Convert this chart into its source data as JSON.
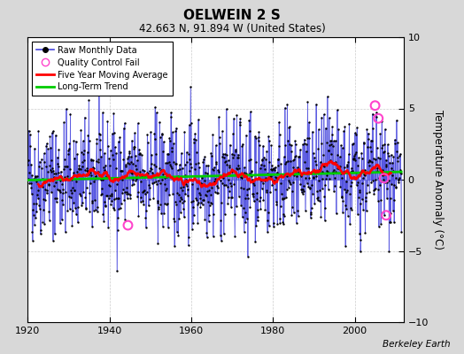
{
  "title": "OELWEIN 2 S",
  "subtitle": "42.663 N, 91.894 W (United States)",
  "ylabel": "Temperature Anomaly (°C)",
  "credit": "Berkeley Earth",
  "xlim": [
    1920,
    2012
  ],
  "ylim": [
    -10,
    10
  ],
  "xticks": [
    1920,
    1940,
    1960,
    1980,
    2000
  ],
  "yticks": [
    -10,
    -5,
    0,
    5,
    10
  ],
  "background_color": "#d8d8d8",
  "plot_bg_color": "#ffffff",
  "raw_line_color": "#4444dd",
  "raw_dot_color": "#000000",
  "moving_avg_color": "#ff0000",
  "trend_color": "#00cc00",
  "qc_fail_color": "#ff44cc",
  "seed": 42,
  "n_years_start": 1920,
  "n_years_end": 2011,
  "qc_fail_points": [
    {
      "year": 1944.5,
      "anomaly": -3.2
    },
    {
      "year": 2005.0,
      "anomaly": 5.2
    },
    {
      "year": 2005.8,
      "anomaly": 4.3
    },
    {
      "year": 2007.2,
      "anomaly": 0.1
    },
    {
      "year": 2007.7,
      "anomaly": -2.5
    }
  ]
}
